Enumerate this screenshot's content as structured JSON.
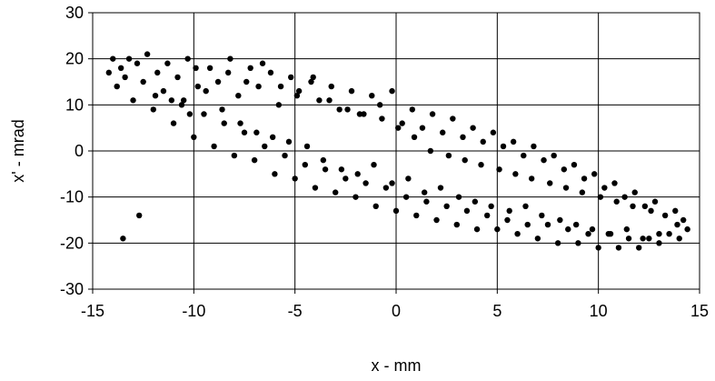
{
  "chart_data": {
    "type": "scatter",
    "title": "",
    "xlabel": "x - mm",
    "ylabel": "x' - mrad",
    "xlim": [
      -15,
      15
    ],
    "ylim": [
      -30,
      30
    ],
    "xticks": [
      -15,
      -10,
      -5,
      0,
      5,
      10,
      15
    ],
    "yticks": [
      -30,
      -20,
      -10,
      0,
      10,
      20,
      30
    ],
    "grid": true,
    "legend": "none",
    "marker_color": "#000000",
    "series": [
      {
        "x": [
          -14.2,
          -14,
          -13.8,
          -13.6,
          -13.4,
          -13.2,
          -13,
          -12.8,
          -12.5,
          -12.3,
          -12,
          -11.8,
          -11.5,
          -11.3,
          -11,
          -10.8,
          -10.5,
          -10.3,
          -10,
          -9.8,
          -9.5,
          -9.2,
          -9,
          -8.8,
          -8.5,
          -8.2,
          -8,
          -7.8,
          -7.5,
          -7.2,
          -7,
          -6.8,
          -6.5,
          -6.2,
          -6,
          -5.8,
          -5.5,
          -5.2,
          -5,
          -4.8,
          -4.5,
          -4.2,
          -4,
          -3.8,
          -3.5,
          -3.2,
          -3,
          -2.8,
          -2.5,
          -2.2,
          -2,
          -1.8,
          -1.5,
          -1.2,
          -1,
          -0.8,
          -0.5,
          -0.2,
          0,
          0.3,
          0.5,
          0.8,
          1,
          1.3,
          1.5,
          1.8,
          2,
          2.3,
          2.5,
          2.8,
          3,
          3.3,
          3.5,
          3.8,
          4,
          4.3,
          4.5,
          4.8,
          5,
          5.3,
          5.5,
          5.8,
          6,
          6.3,
          6.5,
          6.8,
          7,
          7.3,
          7.5,
          7.8,
          8,
          8.3,
          8.5,
          8.8,
          9,
          9.3,
          9.5,
          9.8,
          10,
          10.3,
          10.5,
          10.8,
          11,
          11.3,
          11.5,
          11.8,
          12,
          12.3,
          12.5,
          12.8,
          13,
          13.3,
          13.5,
          13.8,
          14,
          14.2,
          14.4,
          -13.5,
          -12.7,
          -11.9,
          -11.1,
          -10.2,
          -9.4,
          -8.6,
          -7.7,
          -6.9,
          -6.1,
          -5.3,
          -4.4,
          -3.6,
          -2.7,
          -1.9,
          -1.1,
          -0.2,
          0.6,
          1.4,
          2.2,
          3.1,
          3.9,
          4.7,
          5.6,
          6.4,
          7.2,
          8.1,
          8.9,
          9.7,
          10.6,
          11.4,
          12.2,
          13,
          13.9,
          -10.6,
          -9.9,
          -8.3,
          -7.4,
          -6.6,
          -5.7,
          -4.9,
          -4.1,
          -3.3,
          -2.4,
          -1.6,
          -0.7,
          0.1,
          0.9,
          1.7,
          2.6,
          3.4,
          4.2,
          5.1,
          5.9,
          6.7,
          7.6,
          8.4,
          9.2,
          10.1,
          10.9,
          11.7,
          12.6
        ],
        "y": [
          17,
          20,
          14,
          18,
          16,
          20,
          11,
          19,
          15,
          21,
          9,
          17,
          13,
          19,
          6,
          16,
          11,
          20,
          3,
          14,
          8,
          18,
          1,
          15,
          6,
          20,
          -1,
          12,
          4,
          18,
          -2,
          14,
          1,
          17,
          -5,
          10,
          -1,
          16,
          -6,
          13,
          -3,
          15,
          -8,
          11,
          -4,
          14,
          -9,
          9,
          -6,
          13,
          -10,
          8,
          -7,
          12,
          -12,
          10,
          -8,
          13,
          -13,
          6,
          -10,
          9,
          -14,
          5,
          -11,
          8,
          -15,
          4,
          -12,
          7,
          -16,
          3,
          -13,
          5,
          -17,
          2,
          -14,
          4,
          -17,
          1,
          -15,
          2,
          -18,
          -1,
          -16,
          1,
          -19,
          -2,
          -16,
          -1,
          -20,
          -4,
          -17,
          -3,
          -20,
          -6,
          -18,
          -5,
          -21,
          -8,
          -18,
          -7,
          -21,
          -10,
          -19,
          -9,
          -21,
          -12,
          -19,
          -11,
          -20,
          -14,
          -18,
          -13,
          -19,
          -15,
          -17,
          -19,
          -14,
          12,
          11,
          8,
          13,
          9,
          6,
          4,
          3,
          2,
          1,
          -2,
          -4,
          -5,
          -3,
          -7,
          -6,
          -9,
          -8,
          -10,
          -11,
          -12,
          -13,
          -12,
          -14,
          -15,
          -16,
          -17,
          -18,
          -17,
          -19,
          -18,
          -16,
          10,
          18,
          17,
          15,
          19,
          14,
          12,
          16,
          11,
          9,
          8,
          7,
          5,
          3,
          0,
          -1,
          -2,
          -3,
          -4,
          -5,
          -6,
          -7,
          -8,
          -9,
          -10,
          -11,
          -12,
          -13
        ]
      }
    ]
  }
}
